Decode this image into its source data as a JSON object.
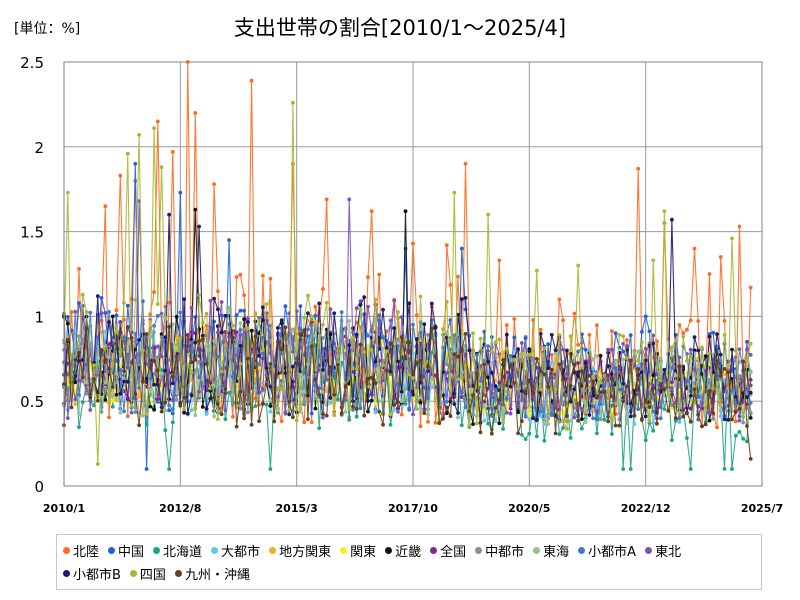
{
  "chart_data": {
    "type": "line",
    "title": "支出世帯の割合[2010/1～2025/4]",
    "unit_label": "[単位：%]",
    "ylim": [
      0,
      2.5
    ],
    "yticks": [
      "0",
      "0.5",
      "1",
      "1.5",
      "2",
      "2.5"
    ],
    "xticks": [
      "2010/1",
      "2012/8",
      "2015/3",
      "2017/10",
      "2020/5",
      "2022/12",
      "2025/7"
    ],
    "grid": true,
    "legend_position": "bottom",
    "series": [
      {
        "name": "北陸",
        "color": "#ff6a1f",
        "base": 0.75,
        "amp": 0.45,
        "spikes": [
          [
            2010.33,
            1.28
          ],
          [
            2010.92,
            1.65
          ],
          [
            2011.25,
            1.83
          ],
          [
            2011.55,
            1.8
          ],
          [
            2012.1,
            2.15
          ],
          [
            2012.45,
            1.97
          ],
          [
            2012.75,
            2.5
          ],
          [
            2012.95,
            2.2
          ],
          [
            2013.33,
            1.78
          ],
          [
            2014.15,
            2.39
          ],
          [
            2015.1,
            1.9
          ],
          [
            2015.85,
            1.69
          ],
          [
            2016.85,
            1.62
          ],
          [
            2017.75,
            1.43
          ],
          [
            2018.5,
            1.42
          ],
          [
            2018.95,
            1.9
          ],
          [
            2019.65,
            1.33
          ],
          [
            2021.0,
            1.1
          ],
          [
            2022.75,
            1.87
          ],
          [
            2023.3,
            1.55
          ],
          [
            2024.0,
            1.4
          ],
          [
            2024.3,
            1.25
          ],
          [
            2024.6,
            1.35
          ],
          [
            2025.0,
            1.53
          ],
          [
            2025.22,
            1.17
          ]
        ]
      },
      {
        "name": "中国",
        "color": "#1f5fe0",
        "base": 0.72,
        "amp": 0.35,
        "spikes": [
          [
            2011.6,
            1.9
          ],
          [
            2011.85,
            0.1
          ],
          [
            2012.55,
            1.73
          ],
          [
            2013.7,
            1.45
          ],
          [
            2017.6,
            1.4
          ],
          [
            2018.8,
            1.4
          ],
          [
            2022.9,
            1.0
          ],
          [
            2025.2,
            0.85
          ]
        ]
      },
      {
        "name": "北海道",
        "color": "#1aa585",
        "base": 0.55,
        "amp": 0.3,
        "spikes": [
          [
            2012.3,
            0.1
          ],
          [
            2014.6,
            0.1
          ],
          [
            2022.45,
            0.1
          ],
          [
            2022.6,
            0.1
          ],
          [
            2023.95,
            0.1
          ],
          [
            2024.7,
            0.1
          ],
          [
            2024.85,
            0.1
          ]
        ]
      },
      {
        "name": "大都市",
        "color": "#66c6ee",
        "base": 0.62,
        "amp": 0.25,
        "spikes": []
      },
      {
        "name": "地方関東",
        "color": "#f2b21c",
        "base": 0.68,
        "amp": 0.25,
        "spikes": []
      },
      {
        "name": "関東",
        "color": "#f3ef1a",
        "base": 0.63,
        "amp": 0.2,
        "spikes": []
      },
      {
        "name": "近畿",
        "color": "#111111",
        "base": 0.66,
        "amp": 0.3,
        "spikes": [
          [
            2012.95,
            1.63
          ],
          [
            2017.6,
            1.62
          ]
        ]
      },
      {
        "name": "全国",
        "color": "#8a1fa0",
        "base": 0.66,
        "amp": 0.2,
        "spikes": []
      },
      {
        "name": "中都市",
        "color": "#8090a0",
        "base": 0.63,
        "amp": 0.25,
        "spikes": []
      },
      {
        "name": "東海",
        "color": "#98bf98",
        "base": 0.65,
        "amp": 0.3,
        "spikes": []
      },
      {
        "name": "小都市A",
        "color": "#4478cc",
        "base": 0.68,
        "amp": 0.3,
        "spikes": []
      },
      {
        "name": "東北",
        "color": "#7a52b8",
        "base": 0.7,
        "amp": 0.35,
        "spikes": [
          [
            2011.65,
            1.68
          ],
          [
            2016.35,
            1.69
          ]
        ]
      },
      {
        "name": "小都市B",
        "color": "#1a1a6a",
        "base": 0.72,
        "amp": 0.35,
        "spikes": [
          [
            2012.35,
            1.6
          ],
          [
            2013.0,
            1.53
          ],
          [
            2023.5,
            1.57
          ]
        ]
      },
      {
        "name": "四国",
        "color": "#a8b830",
        "base": 0.7,
        "amp": 0.4,
        "spikes": [
          [
            2010.1,
            1.73
          ],
          [
            2010.75,
            0.13
          ],
          [
            2011.4,
            1.96
          ],
          [
            2012.0,
            2.11
          ],
          [
            2011.7,
            2.07
          ],
          [
            2012.2,
            1.88
          ],
          [
            2015.1,
            2.26
          ],
          [
            2018.65,
            1.73
          ],
          [
            2019.45,
            1.6
          ],
          [
            2020.5,
            1.27
          ],
          [
            2021.4,
            1.3
          ],
          [
            2023.1,
            1.33
          ],
          [
            2023.35,
            1.62
          ],
          [
            2024.8,
            1.46
          ]
        ]
      },
      {
        "name": "九州・沖縄",
        "color": "#6b3d1c",
        "base": 0.6,
        "amp": 0.3,
        "spikes": [
          [
            2025.25,
            0.16
          ]
        ]
      }
    ]
  }
}
